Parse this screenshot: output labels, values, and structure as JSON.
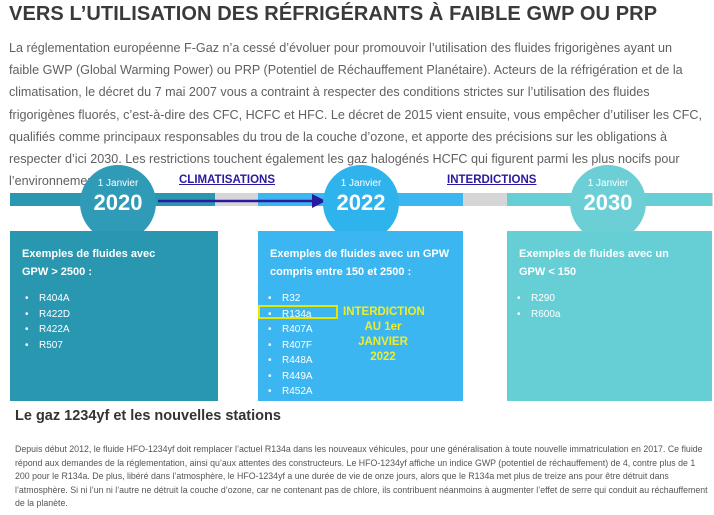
{
  "title": "VERS L’UTILISATION DES RÉFRIGÉRANTS À FAIBLE GWP OU PRP",
  "intro": "La réglementation européenne F-Gaz n’a cessé d’évoluer pour promouvoir l’utilisation des fluides frigorigènes ayant un faible GWP (Global Warming Power) ou PRP (Potentiel de Réchauffement Planétaire). Acteurs de la réfrigération et de la climatisation, le décret du 7 mai 2007 vous a contraint à respecter des conditions strictes sur l’utilisation des fluides frigorigènes fluorés, c’est-à-dire des CFC, HCFC et HFC. Le décret de 2015 vient ensuite, vous empêcher d’utiliser les CFC, qualifiés comme principaux responsables du trou de la couche d’ozone, et apporte des précisions sur les obligations à respecter d’ici 2030. Les restrictions touchent également les gaz halogénés HCFC qui figurent parmi les plus nocifs pour l’environnement.",
  "timeline": {
    "label_climatisations": "CLIMATISATIONS",
    "label_interdictions": "INTERDICTIONS",
    "milestones": [
      {
        "small": "1 Janvier",
        "year": "2020",
        "color": "#2f9bb6"
      },
      {
        "small": "1 Janvier",
        "year": "2022",
        "color": "#2fb3ec"
      },
      {
        "small": "1 Janvier",
        "year": "2030",
        "color": "#6dcfd6"
      }
    ]
  },
  "panels": [
    {
      "title_line1": "Exemples de fluides avec",
      "title_line2": "GPW > 2500 :",
      "color": "#2a97b1",
      "items": [
        "R404A",
        "R422D",
        "R422A",
        "R507"
      ]
    },
    {
      "title_line1": "Exemples de fluides avec un GPW",
      "title_line2": "compris entre 150 et 2500 :",
      "color": "#3cb6f0",
      "items": [
        "R32",
        "R134a",
        "R407A",
        "R407F",
        "R448A",
        "R449A",
        "R452A"
      ]
    },
    {
      "title_line1": "Exemples de fluides avec un",
      "title_line2": "GPW < 150",
      "color": "#66cfd6",
      "items": [
        "R290",
        "R600a"
      ]
    }
  ],
  "interdiction_note": {
    "line1": "INTERDICTION",
    "line2": "AU 1er JANVIER",
    "line3": "2022"
  },
  "subtitle": "Le gaz 1234yf et les nouvelles stations",
  "body": "Depuis début 2012, le fluide HFO-1234yf doit remplacer l’actuel R134a dans les nouveaux véhicules, pour une généralisation à toute nouvelle immatriculation en 2017. Ce fluide répond aux demandes de la réglementation, ainsi qu’aux attentes des constructeurs. Le HFO-1234yf affiche un indice GWP (potentiel de réchauffement) de 4, contre plus de 1 200 pour le R134a. De plus, libéré dans l’atmosphère, le HFO-1234yf a une durée de vie de onze jours, alors que le R134a met plus de treize ans pour être détruit dans l’atmosphère. Si ni l’un ni l’autre ne détruit la couche d’ozone, car ne contenant pas de chlore, ils contribuent néanmoins à augmenter l’effet de serre qui conduit au réchauffement de la planète."
}
